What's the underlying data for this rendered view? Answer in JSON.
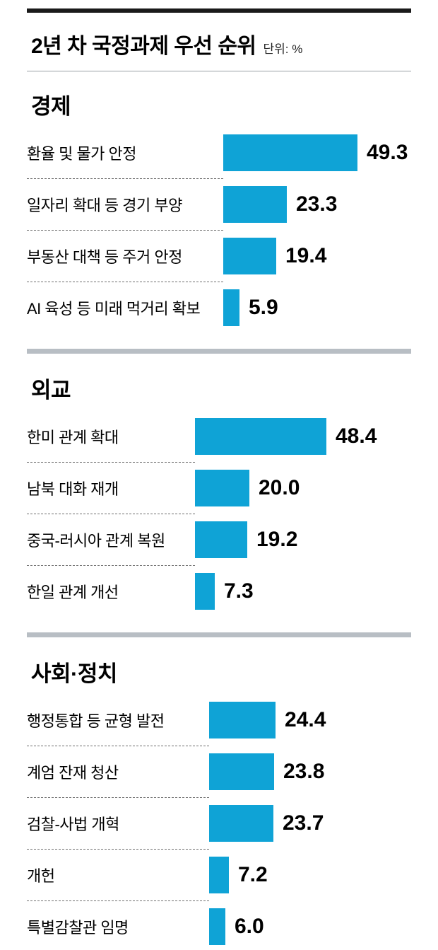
{
  "header": {
    "title": "2년 차 국정과제 우선 순위",
    "unit_label": "단위: %"
  },
  "style": {
    "bar_color": "#0fa3d6",
    "divider_color": "#b8bec4",
    "rule_color": "#1a1a1a"
  },
  "chart_data": [
    {
      "type": "bar",
      "title": "경제",
      "orientation": "horizontal",
      "unit": "%",
      "xlim": [
        0,
        50
      ],
      "categories": [
        "환율 및 물가 안정",
        "일자리 확대 등 경기 부양",
        "부동산 대책 등 주거 안정",
        "AI 육성 등 미래 먹거리 확보"
      ],
      "values": [
        49.3,
        23.3,
        19.4,
        5.9
      ]
    },
    {
      "type": "bar",
      "title": "외교",
      "orientation": "horizontal",
      "unit": "%",
      "xlim": [
        0,
        50
      ],
      "categories": [
        "한미 관계 확대",
        "남북 대화 재개",
        "중국-러시아 관계 복원",
        "한일 관계 개선"
      ],
      "values": [
        48.4,
        20.0,
        19.2,
        7.3
      ]
    },
    {
      "type": "bar",
      "title": "사회·정치",
      "orientation": "horizontal",
      "unit": "%",
      "xlim": [
        0,
        50
      ],
      "categories": [
        "행정통합 등 균형 발전",
        "계엄 잔재 청산",
        "검찰-사법 개혁",
        "개헌",
        "특별감찰관 임명"
      ],
      "values": [
        24.4,
        23.8,
        23.7,
        7.2,
        6.0
      ]
    }
  ]
}
